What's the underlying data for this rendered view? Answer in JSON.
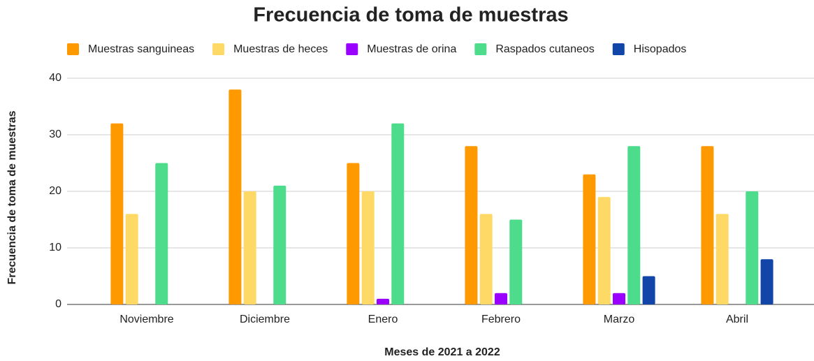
{
  "chart_data": {
    "type": "bar",
    "title": "Frecuencia de toma de muestras",
    "x_label": "Meses de 2021 a 2022",
    "y_label": "Frecuencia de toma de muestras",
    "categories": [
      "Noviembre",
      "Diciembre",
      "Enero",
      "Febrero",
      "Marzo",
      "Abril"
    ],
    "series": [
      {
        "name": "Muestras sanguineas",
        "color": "#ff9900",
        "values": [
          32,
          38,
          25,
          28,
          23,
          28
        ]
      },
      {
        "name": "Muestras de heces",
        "color": "#ffd966",
        "values": [
          16,
          20,
          20,
          16,
          19,
          16
        ]
      },
      {
        "name": "Muestras de orina",
        "color": "#9900ff",
        "values": [
          0,
          0,
          1,
          2,
          2,
          0
        ]
      },
      {
        "name": "Raspados cutaneos",
        "color": "#4cdc8b",
        "values": [
          25,
          21,
          32,
          15,
          28,
          20
        ]
      },
      {
        "name": "Hisopados",
        "color": "#1146a8",
        "values": [
          0,
          0,
          0,
          0,
          5,
          8
        ]
      }
    ],
    "ylim": [
      0,
      40
    ],
    "yticks": [
      0,
      10,
      20,
      30,
      40
    ],
    "grid": true,
    "legend": "top"
  }
}
